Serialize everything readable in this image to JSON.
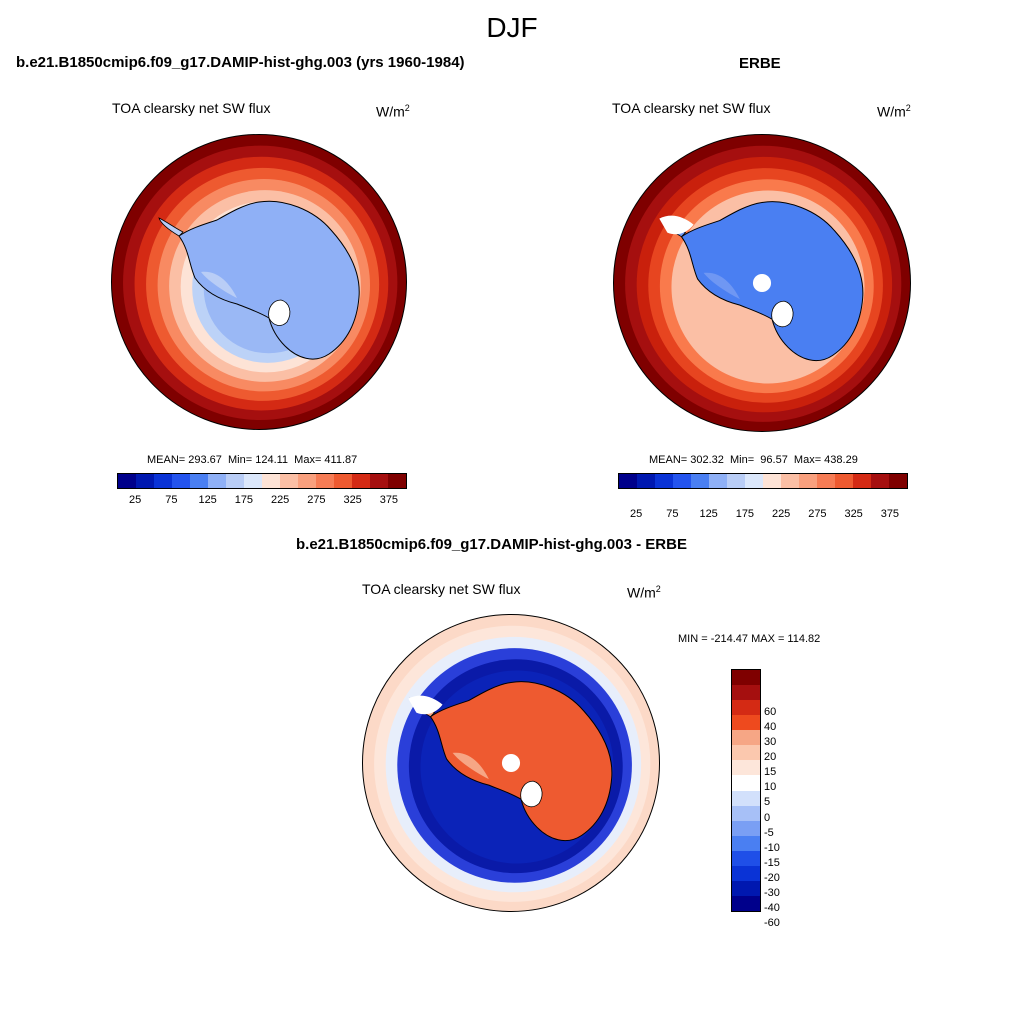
{
  "season": "DJF",
  "units_base": "W/m",
  "units_exp": "2",
  "panels": {
    "model": {
      "title": "b.e21.B1850cmip6.f09_g17.DAMIP-hist-ghg.003 (yrs 1960-1984)",
      "subtitle": "TOA clearsky net SW flux",
      "stats": "MEAN= 293.67  Min= 124.11  Max= 411.87",
      "rings": [
        "#7f0000",
        "#a50f0f",
        "#d42a14",
        "#ee5a30",
        "#f88a62",
        "#fbbfa5",
        "#fde3d6",
        "#bcd2f7",
        "#9ab8f5"
      ],
      "continent": "#8fb0f6",
      "continent_light": "#b9cdf6"
    },
    "obs": {
      "title": "ERBE",
      "subtitle": "TOA clearsky net SW flux",
      "stats": "MEAN= 302.32  Min=  96.57  Max= 438.29",
      "rings": [
        "#7f0000",
        "#a50f0f",
        "#c9200c",
        "#e74520",
        "#f97a4c",
        "#fbbfa5"
      ],
      "continent": "#4a7ff2",
      "continent_light": "#6f97f3"
    },
    "diff": {
      "title": "b.e21.B1850cmip6.f09_g17.DAMIP-hist-ghg.003 - ERBE",
      "subtitle": "TOA clearsky net SW flux",
      "range": "MIN = -214.47 MAX = 114.82",
      "rings": [
        "#fcd9c7",
        "#fde6da",
        "#e7eefb",
        "#2a3fd9",
        "#0a1aa8",
        "#0b23b8"
      ],
      "continent": "#ee5a30",
      "continent_light": "#f6a685"
    }
  },
  "colorbar_abs": {
    "colors": [
      "#00008b",
      "#0018b0",
      "#0a33d6",
      "#2454ee",
      "#4a7ff2",
      "#8fb0f6",
      "#b9cdf6",
      "#dbe7fb",
      "#fde3d6",
      "#fbbfa5",
      "#f9a07e",
      "#f67c55",
      "#ee5a30",
      "#d42a14",
      "#a50f0f",
      "#7f0000"
    ],
    "ticks": [
      "25",
      "75",
      "125",
      "175",
      "225",
      "275",
      "325",
      "375"
    ]
  },
  "colorbar_diff": {
    "colors": [
      "#7f0000",
      "#a50f0f",
      "#d42a14",
      "#ee4a1e",
      "#f6a685",
      "#fbc8ae",
      "#fde6da",
      "#ffffff",
      "#d2e0fb",
      "#a7c0f7",
      "#7a9ff4",
      "#4a7ff2",
      "#1f4fe8",
      "#0a33d6",
      "#0018b0",
      "#00008b"
    ],
    "labels": [
      "60",
      "40",
      "30",
      "20",
      "15",
      "10",
      "5",
      "0",
      "-5",
      "-10",
      "-15",
      "-20",
      "-30",
      "-40",
      "-60"
    ]
  }
}
